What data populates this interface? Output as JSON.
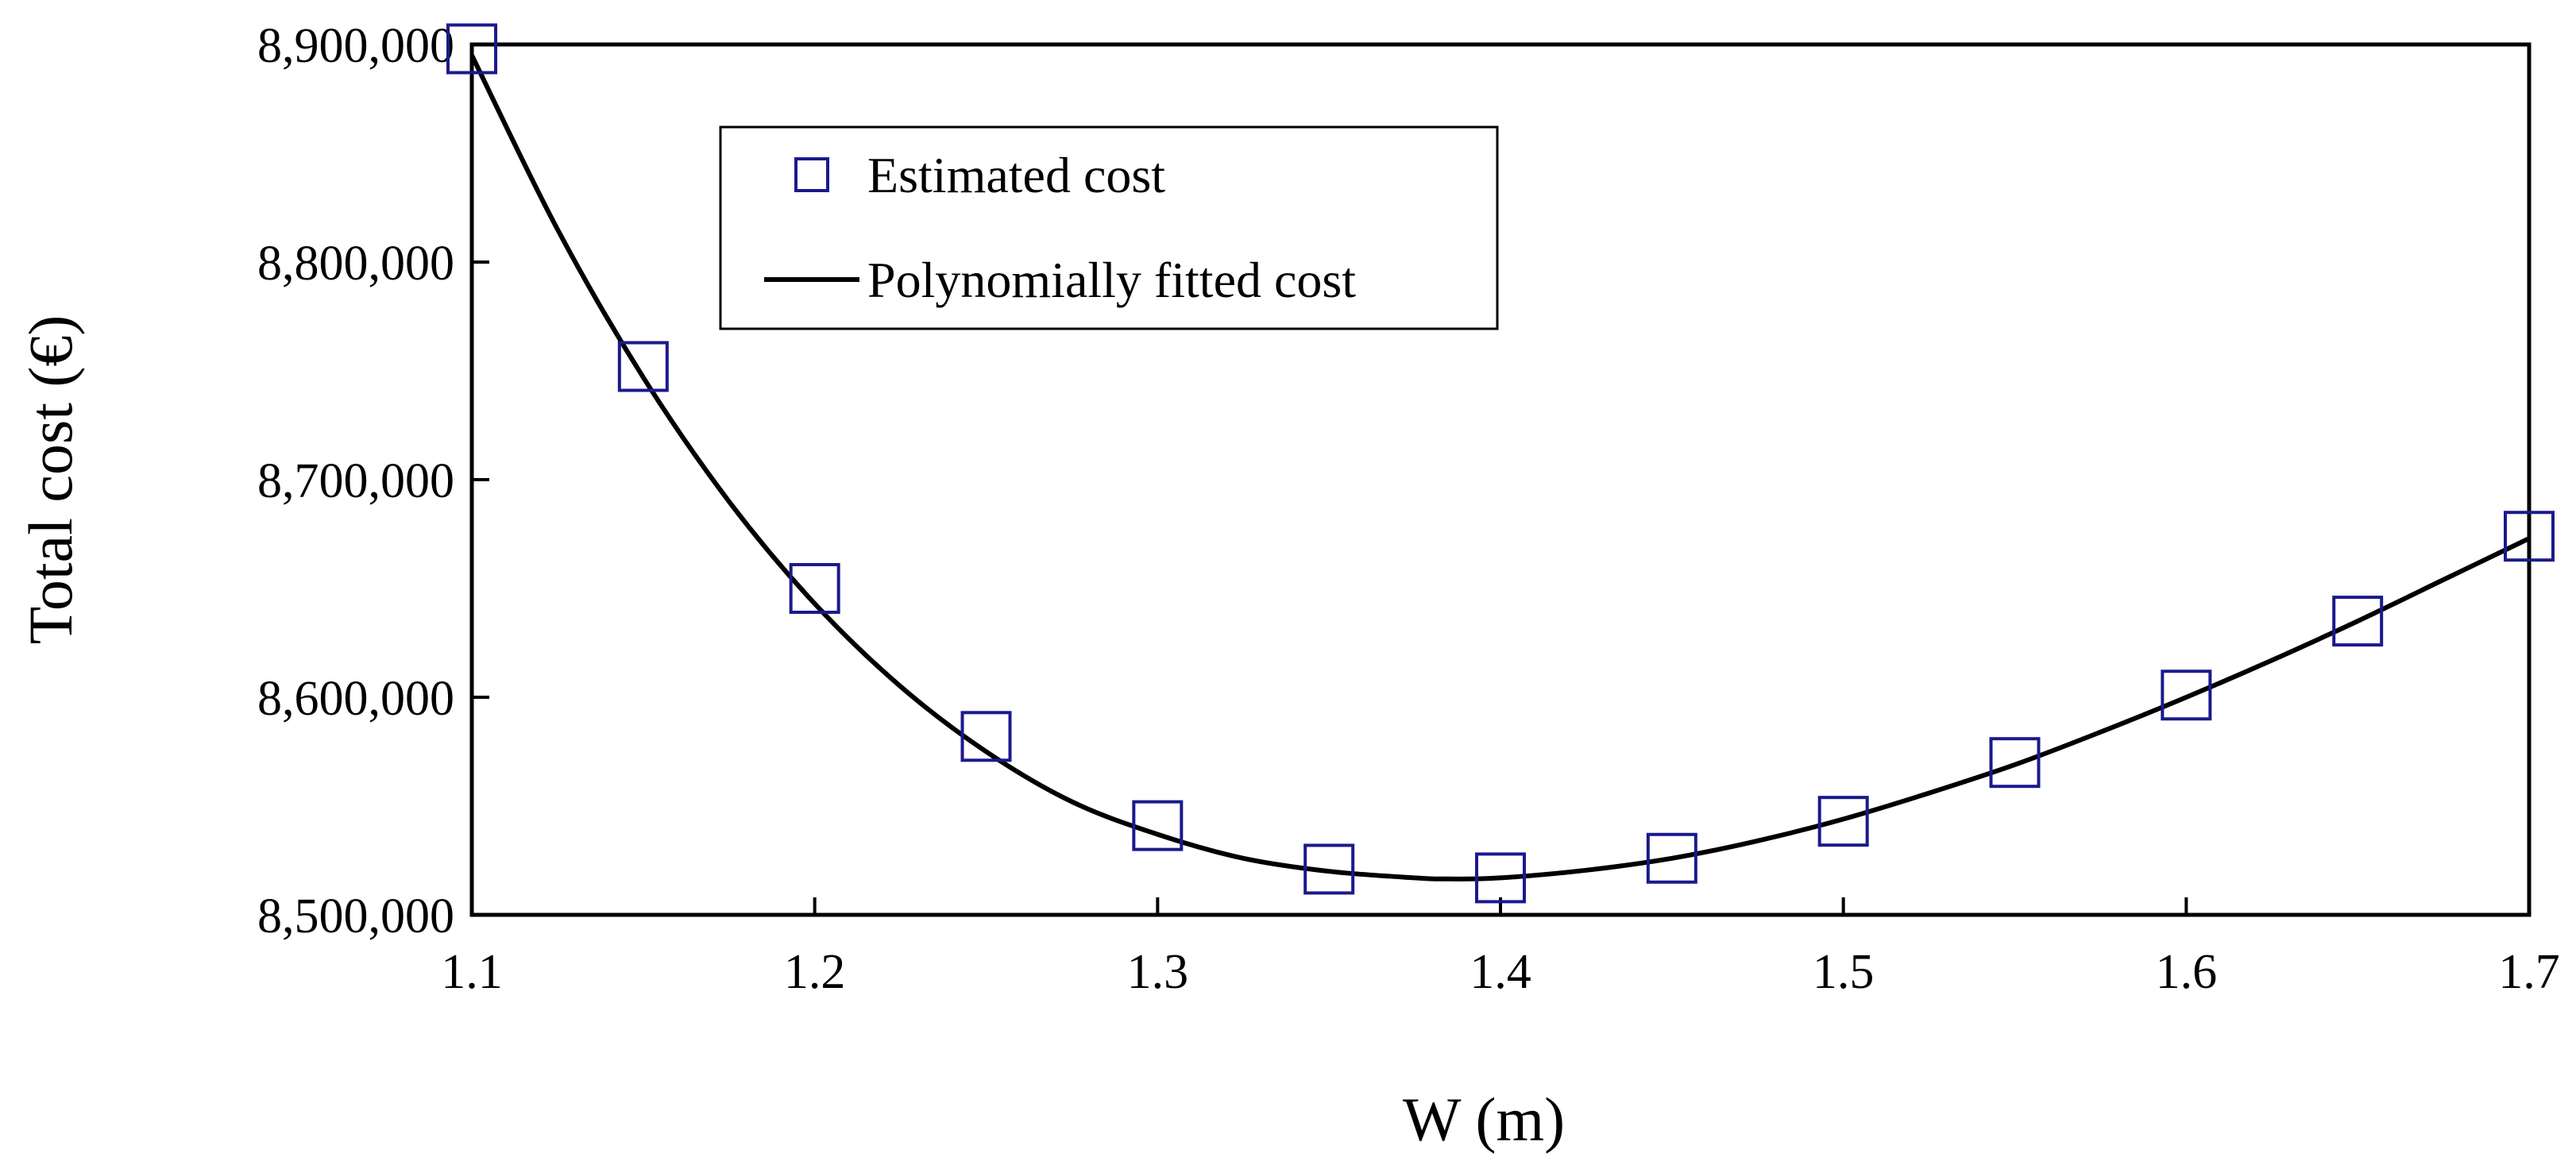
{
  "chart_data": {
    "type": "scatter",
    "title": "",
    "xlabel": "W (m)",
    "ylabel": "Total cost (€)",
    "xlim": [
      1.1,
      1.7
    ],
    "ylim": [
      8500000,
      8900000
    ],
    "xticks": [
      "1.1",
      "1.2",
      "1.3",
      "1.4",
      "1.5",
      "1.6",
      "1.7"
    ],
    "xtick_values": [
      1.1,
      1.2,
      1.3,
      1.4,
      1.5,
      1.6,
      1.7
    ],
    "yticks": [
      "8,500,000",
      "8,600,000",
      "8,700,000",
      "8,800,000",
      "8,900,000"
    ],
    "ytick_values": [
      8500000,
      8600000,
      8700000,
      8800000,
      8900000
    ],
    "grid": false,
    "legend_position": "top-left",
    "series": [
      {
        "name": "Estimated cost",
        "kind": "markers",
        "marker": "open-square",
        "color": "#1a1a8c",
        "x": [
          1.1,
          1.15,
          1.2,
          1.25,
          1.3,
          1.35,
          1.4,
          1.45,
          1.5,
          1.55,
          1.6,
          1.65,
          1.7
        ],
        "y": [
          8898000,
          8752000,
          8650000,
          8582000,
          8541000,
          8521000,
          8517000,
          8526000,
          8543000,
          8570000,
          8601000,
          8635000,
          8674000
        ]
      },
      {
        "name": "Polynomially fitted cost",
        "kind": "line",
        "color": "#000000",
        "x": [
          1.1,
          1.125,
          1.15,
          1.175,
          1.2,
          1.225,
          1.25,
          1.275,
          1.3,
          1.325,
          1.35,
          1.375,
          1.385,
          1.4,
          1.425,
          1.45,
          1.475,
          1.5,
          1.525,
          1.55,
          1.575,
          1.6,
          1.625,
          1.65,
          1.675,
          1.7
        ],
        "y": [
          8895000,
          8815000,
          8747000,
          8690000,
          8643000,
          8605000,
          8575000,
          8552000,
          8537000,
          8526000,
          8520000,
          8517000,
          8516500,
          8517000,
          8520500,
          8526000,
          8534000,
          8544000,
          8556000,
          8569000,
          8584000,
          8600000,
          8617000,
          8635000,
          8654000,
          8673000
        ]
      }
    ]
  }
}
